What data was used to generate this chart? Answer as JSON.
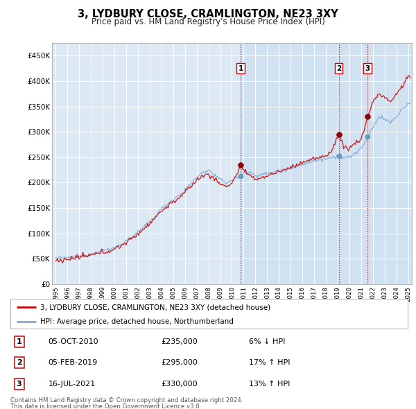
{
  "title": "3, LYDBURY CLOSE, CRAMLINGTON, NE23 3XY",
  "subtitle": "Price paid vs. HM Land Registry's House Price Index (HPI)",
  "property_label": "3, LYDBURY CLOSE, CRAMLINGTON, NE23 3XY (detached house)",
  "hpi_label": "HPI: Average price, detached house, Northumberland",
  "footer1": "Contains HM Land Registry data © Crown copyright and database right 2024.",
  "footer2": "This data is licensed under the Open Government Licence v3.0.",
  "sales": [
    {
      "num": 1,
      "date_x": 2010.75,
      "price": 235000,
      "label": "05-OCT-2010",
      "pct": "6% ↓ HPI"
    },
    {
      "num": 2,
      "date_x": 2019.08,
      "price": 295000,
      "label": "05-FEB-2019",
      "pct": "17% ↑ HPI"
    },
    {
      "num": 3,
      "date_x": 2021.54,
      "price": 330000,
      "label": "16-JUL-2021",
      "pct": "13% ↑ HPI"
    }
  ],
  "ylim": [
    0,
    475000
  ],
  "xlim": [
    1994.7,
    2025.3
  ],
  "yticks": [
    0,
    50000,
    100000,
    150000,
    200000,
    250000,
    300000,
    350000,
    400000,
    450000
  ],
  "ytick_labels": [
    "£0",
    "£50K",
    "£100K",
    "£150K",
    "£200K",
    "£250K",
    "£300K",
    "£350K",
    "£400K",
    "£450K"
  ],
  "xticks": [
    1995,
    1996,
    1997,
    1998,
    1999,
    2000,
    2001,
    2002,
    2003,
    2004,
    2005,
    2006,
    2007,
    2008,
    2009,
    2010,
    2011,
    2012,
    2013,
    2014,
    2015,
    2016,
    2017,
    2018,
    2019,
    2020,
    2021,
    2022,
    2023,
    2024,
    2025
  ],
  "bg_color": "#dce9f5",
  "bg_highlight": "#c8dcf0",
  "red_color": "#cc0000",
  "blue_color": "#80aad0",
  "vline_color": "#cc0000",
  "marker_red": "#990000",
  "marker_blue": "#6699bb",
  "hpi_anchors_x": [
    1995.0,
    1995.5,
    1996.0,
    1996.5,
    1997.0,
    1997.5,
    1998.0,
    1998.5,
    1999.0,
    1999.5,
    2000.0,
    2000.5,
    2001.0,
    2001.5,
    2002.0,
    2002.5,
    2003.0,
    2003.5,
    2004.0,
    2004.5,
    2005.0,
    2005.5,
    2006.0,
    2006.5,
    2007.0,
    2007.5,
    2008.0,
    2008.5,
    2009.0,
    2009.5,
    2010.0,
    2010.5,
    2011.0,
    2011.5,
    2012.0,
    2012.5,
    2013.0,
    2013.5,
    2014.0,
    2014.5,
    2015.0,
    2015.5,
    2016.0,
    2016.5,
    2017.0,
    2017.5,
    2018.0,
    2018.5,
    2019.0,
    2019.5,
    2020.0,
    2020.5,
    2021.0,
    2021.5,
    2022.0,
    2022.5,
    2023.0,
    2023.5,
    2024.0,
    2024.5,
    2025.0
  ],
  "hpi_anchors_y": [
    52000,
    51000,
    52000,
    53000,
    55000,
    57000,
    60000,
    63000,
    66000,
    68000,
    72000,
    78000,
    85000,
    93000,
    102000,
    112000,
    123000,
    135000,
    148000,
    158000,
    167000,
    175000,
    185000,
    198000,
    210000,
    220000,
    225000,
    215000,
    205000,
    200000,
    205000,
    210000,
    218000,
    220000,
    215000,
    215000,
    218000,
    220000,
    222000,
    225000,
    228000,
    232000,
    236000,
    240000,
    243000,
    245000,
    248000,
    250000,
    252000,
    248000,
    250000,
    258000,
    268000,
    285000,
    310000,
    330000,
    325000,
    318000,
    330000,
    345000,
    355000
  ],
  "prop_anchors_x": [
    1995.0,
    1995.5,
    1996.0,
    1996.5,
    1997.0,
    1997.5,
    1998.0,
    1998.5,
    1999.0,
    1999.5,
    2000.0,
    2000.5,
    2001.0,
    2001.5,
    2002.0,
    2002.5,
    2003.0,
    2003.5,
    2004.0,
    2004.5,
    2005.0,
    2005.5,
    2006.0,
    2006.5,
    2007.0,
    2007.5,
    2008.0,
    2008.5,
    2009.0,
    2009.5,
    2010.0,
    2010.5,
    2010.75,
    2011.0,
    2011.5,
    2012.0,
    2012.5,
    2013.0,
    2013.5,
    2014.0,
    2014.5,
    2015.0,
    2015.5,
    2016.0,
    2016.5,
    2017.0,
    2017.5,
    2018.0,
    2018.5,
    2019.08,
    2019.5,
    2020.0,
    2020.5,
    2021.0,
    2021.54,
    2022.0,
    2022.5,
    2023.0,
    2023.5,
    2024.0,
    2024.5,
    2025.0
  ],
  "prop_anchors_y": [
    48000,
    47000,
    49000,
    51000,
    53000,
    55000,
    57000,
    60000,
    63000,
    65000,
    69000,
    75000,
    82000,
    90000,
    99000,
    109000,
    120000,
    132000,
    144000,
    153000,
    162000,
    170000,
    180000,
    193000,
    205000,
    213000,
    217000,
    207000,
    198000,
    192000,
    200000,
    220000,
    235000,
    225000,
    212000,
    207000,
    210000,
    213000,
    218000,
    222000,
    226000,
    230000,
    235000,
    240000,
    244000,
    247000,
    249000,
    252000,
    265000,
    295000,
    270000,
    268000,
    278000,
    285000,
    330000,
    360000,
    375000,
    368000,
    358000,
    375000,
    390000,
    410000
  ]
}
